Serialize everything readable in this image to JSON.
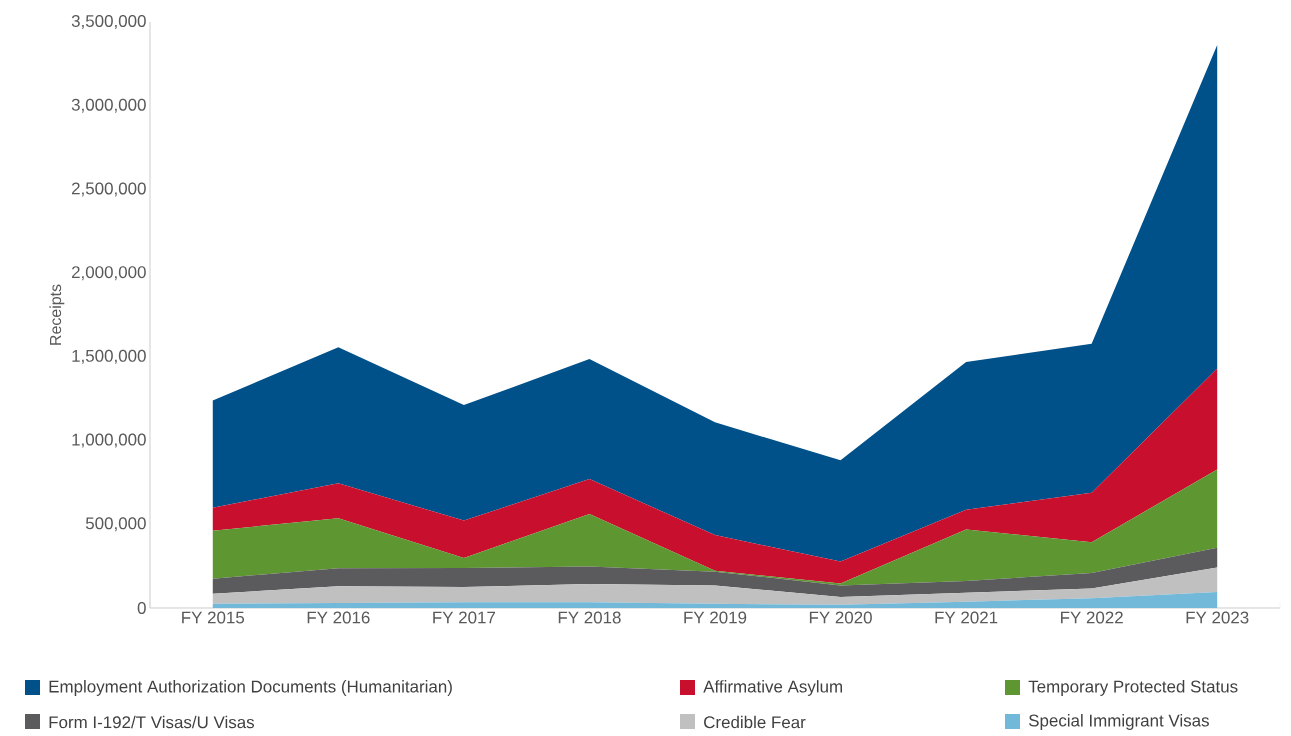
{
  "chart_data": {
    "type": "area",
    "stacked": true,
    "ylabel": "Receipts",
    "categories": [
      "FY 2015",
      "FY 2016",
      "FY 2017",
      "FY 2018",
      "FY 2019",
      "FY 2020",
      "FY 2021",
      "FY 2022",
      "FY 2023"
    ],
    "ylim": [
      0,
      3500000
    ],
    "yticks": [
      {
        "value": 0,
        "label": "0"
      },
      {
        "value": 500000,
        "label": "500,000"
      },
      {
        "value": 1000000,
        "label": "1,000,000"
      },
      {
        "value": 1500000,
        "label": "1,500,000"
      },
      {
        "value": 2000000,
        "label": "2,000,000"
      },
      {
        "value": 2500000,
        "label": "2,500,000"
      },
      {
        "value": 3000000,
        "label": "3,000,000"
      },
      {
        "value": 3500000,
        "label": "3,500,000"
      }
    ],
    "grid": false,
    "legend": "bottom",
    "series": [
      {
        "name": "Special Immigrant Visas",
        "color": "#72b8d8",
        "values": [
          25000,
          30000,
          35000,
          35000,
          25000,
          20000,
          38000,
          58000,
          96000
        ]
      },
      {
        "name": "Credible Fear",
        "color": "#c0c0c0",
        "values": [
          60000,
          100000,
          90000,
          108000,
          109000,
          46000,
          53000,
          58000,
          146000
        ]
      },
      {
        "name": "Form I-192/T Visas/U Visas",
        "color": "#5b5b5d",
        "values": [
          90000,
          108000,
          114000,
          105000,
          83000,
          68000,
          70000,
          93000,
          118000
        ]
      },
      {
        "name": "Temporary Protected Status",
        "color": "#5e9732",
        "values": [
          287000,
          298000,
          60000,
          313000,
          5000,
          12000,
          308000,
          184000,
          467000
        ]
      },
      {
        "name": "Affirmative Asylum",
        "color": "#c8102e",
        "values": [
          137000,
          209000,
          223000,
          209000,
          214000,
          131000,
          118000,
          295000,
          604000
        ]
      },
      {
        "name": "Employment Authorization Documents (Humanitarian)",
        "color": "#00508a",
        "values": [
          640000,
          813000,
          690000,
          717000,
          673000,
          605000,
          882000,
          890000,
          1932000
        ]
      }
    ]
  }
}
